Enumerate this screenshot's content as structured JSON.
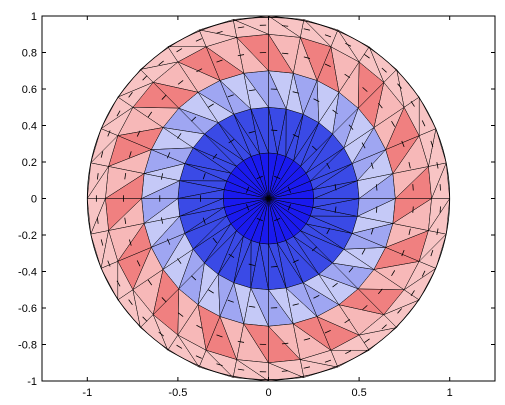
{
  "chart_data": {
    "type": "other",
    "title": "",
    "xlabel": "",
    "ylabel": "",
    "xlim": [
      -1.25,
      1.25
    ],
    "ylim": [
      -1,
      1
    ],
    "x_ticks": [
      -1,
      -0.5,
      0,
      0.5,
      1
    ],
    "x_tick_labels": [
      "-1",
      "-0.5",
      "0",
      "0.5",
      "1"
    ],
    "y_ticks": [
      1,
      0.8,
      0.6,
      0.4,
      0.2,
      0,
      -0.2,
      -0.4,
      -0.6,
      -0.8,
      -1
    ],
    "y_tick_labels": [
      "1",
      "0.8",
      "0.6",
      "0.4",
      "0.2",
      "0",
      "-0.2",
      "-0.4",
      "-0.6",
      "-0.8",
      "-1"
    ],
    "grid": false,
    "mesh": {
      "shape": "disk",
      "radius": 1,
      "rings": [
        0,
        0.25,
        0.5,
        0.7,
        0.9,
        1.0
      ],
      "sectors": 32,
      "ring_fill_mode": [
        "solid",
        "solid",
        "alternate",
        "alternate",
        "solid"
      ],
      "ring_colors": [
        [
          "#1a1aee",
          "#1a1aee"
        ],
        [
          "#3a4ae6",
          "#3a4ae6"
        ],
        [
          "#9fa6f2",
          "#c5c9f7"
        ],
        [
          "#f08080",
          "#f7b8b8"
        ],
        [
          "#f8c4c4",
          "#f8c4c4"
        ]
      ]
    },
    "colors": {
      "edge": "#000000",
      "arrow": "#000000",
      "axes": "#000000"
    }
  }
}
